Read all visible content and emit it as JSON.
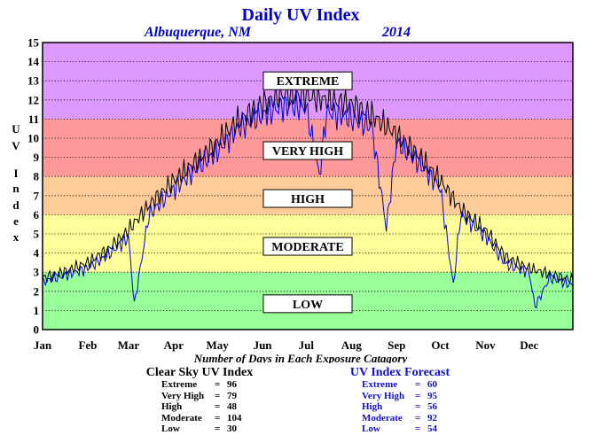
{
  "title": "Daily UV Index",
  "location": "Albuquerque, NM",
  "year": "2014",
  "y_axis_label": "UV Index",
  "x_axis_caption": "Number of Days in Each Exposure Catagory",
  "colors": {
    "title": "#0000cc",
    "low": "#99ff99",
    "moderate": "#ffff99",
    "high": "#ffcc99",
    "very_high": "#ff9999",
    "extreme": "#dd99ff",
    "clear_sky_line": "#000000",
    "forecast_line": "#0000dd"
  },
  "chart_data": {
    "type": "line",
    "title": "Daily UV Index",
    "subtitle": "Albuquerque, NM 2014",
    "ylabel": "UV Index",
    "xlabel": "",
    "ylim": [
      0,
      15
    ],
    "yticks": [
      0,
      1,
      2,
      3,
      4,
      5,
      6,
      7,
      8,
      9,
      10,
      11,
      12,
      13,
      14,
      15
    ],
    "x_tick_labels": [
      "Jan",
      "Feb",
      "Mar",
      "Apr",
      "May",
      "Jun",
      "Jul",
      "Aug",
      "Sep",
      "Oct",
      "Nov",
      "Dec"
    ],
    "grid": true,
    "zones": [
      {
        "label": "LOW",
        "from": 0,
        "to": 3,
        "color": "#99ff99"
      },
      {
        "label": "MODERATE",
        "from": 3,
        "to": 6,
        "color": "#ffff99"
      },
      {
        "label": "HIGH",
        "from": 6,
        "to": 8,
        "color": "#ffcc99"
      },
      {
        "label": "VERY HIGH",
        "from": 8,
        "to": 11,
        "color": "#ff9999"
      },
      {
        "label": "EXTREME",
        "from": 11,
        "to": 15,
        "color": "#dd99ff"
      }
    ],
    "series": [
      {
        "name": "Clear Sky UV Index",
        "color": "#000000",
        "points": [
          [
            "Jan 1",
            2.7
          ],
          [
            "Jan 15",
            3.0
          ],
          [
            "Feb 1",
            3.5
          ],
          [
            "Feb 15",
            4.2
          ],
          [
            "Mar 1",
            5.2
          ],
          [
            "Mar 15",
            6.5
          ],
          [
            "Apr 1",
            7.8
          ],
          [
            "Apr 15",
            8.7
          ],
          [
            "May 1",
            9.8
          ],
          [
            "May 15",
            10.9
          ],
          [
            "Jun 1",
            11.8
          ],
          [
            "Jun 15",
            12.3
          ],
          [
            "Jul 1",
            12.2
          ],
          [
            "Jul 15",
            12.0
          ],
          [
            "Aug 1",
            11.8
          ],
          [
            "Aug 15",
            11.2
          ],
          [
            "Sep 1",
            10.2
          ],
          [
            "Sep 15",
            9.2
          ],
          [
            "Oct 1",
            7.8
          ],
          [
            "Oct 15",
            6.3
          ],
          [
            "Nov 1",
            5.2
          ],
          [
            "Nov 15",
            3.8
          ],
          [
            "Dec 1",
            3.2
          ],
          [
            "Dec 15",
            2.9
          ],
          [
            "Dec 31",
            2.6
          ]
        ]
      },
      {
        "name": "UV Index Forecast",
        "color": "#0000dd",
        "points": [
          [
            "Jan 1",
            2.5
          ],
          [
            "Jan 15",
            2.8
          ],
          [
            "Feb 1",
            3.2
          ],
          [
            "Feb 15",
            3.9
          ],
          [
            "Mar 1",
            4.8
          ],
          [
            "Mar 5",
            1.3
          ],
          [
            "Mar 15",
            6.0
          ],
          [
            "Apr 1",
            7.3
          ],
          [
            "Apr 15",
            8.3
          ],
          [
            "May 1",
            9.3
          ],
          [
            "May 15",
            10.5
          ],
          [
            "Jun 1",
            11.2
          ],
          [
            "Jun 15",
            11.7
          ],
          [
            "Jul 1",
            11.6
          ],
          [
            "Jul 10",
            8.0
          ],
          [
            "Jul 15",
            11.4
          ],
          [
            "Aug 1",
            11.0
          ],
          [
            "Aug 15",
            10.6
          ],
          [
            "Aug 25",
            5.3
          ],
          [
            "Sep 1",
            9.8
          ],
          [
            "Sep 15",
            8.8
          ],
          [
            "Oct 1",
            7.4
          ],
          [
            "Oct 10",
            2.3
          ],
          [
            "Oct 15",
            6.0
          ],
          [
            "Nov 1",
            4.9
          ],
          [
            "Nov 15",
            3.4
          ],
          [
            "Dec 1",
            3.0
          ],
          [
            "Dec 5",
            1.2
          ],
          [
            "Dec 15",
            2.7
          ],
          [
            "Dec 31",
            2.3
          ]
        ]
      }
    ]
  },
  "clear_sky": {
    "title": "Clear Sky UV Index",
    "rows": [
      {
        "label": "Extreme",
        "eq": "=",
        "value": "96"
      },
      {
        "label": "Very High",
        "eq": "=",
        "value": "79"
      },
      {
        "label": "High",
        "eq": "=",
        "value": "48"
      },
      {
        "label": "Moderate",
        "eq": "=",
        "value": "104"
      },
      {
        "label": "Low",
        "eq": "=",
        "value": "30"
      }
    ]
  },
  "forecast": {
    "title": "UV Index Forecast",
    "rows": [
      {
        "label": "Extreme",
        "eq": "=",
        "value": "60"
      },
      {
        "label": "Very High",
        "eq": "=",
        "value": "95"
      },
      {
        "label": "High",
        "eq": "=",
        "value": "56"
      },
      {
        "label": "Moderate",
        "eq": "=",
        "value": "92"
      },
      {
        "label": "Low",
        "eq": "=",
        "value": "54"
      }
    ]
  }
}
